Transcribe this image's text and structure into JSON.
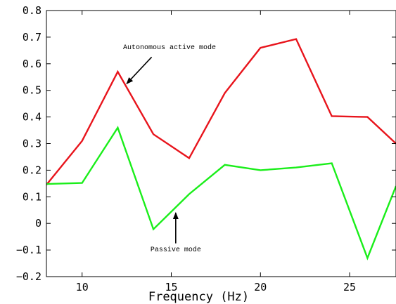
{
  "chart_data": {
    "type": "line",
    "title": "",
    "xlabel": "Frequency (Hz)",
    "ylabel": "",
    "xlim": [
      8,
      27.6
    ],
    "ylim": [
      -0.2,
      0.8
    ],
    "xticks": [
      10,
      15,
      20,
      25
    ],
    "xtick_labels": [
      "10",
      "15",
      "20",
      "25"
    ],
    "yticks": [
      -0.2,
      -0.1,
      0,
      0.1,
      0.2,
      0.3,
      0.4,
      0.5,
      0.6,
      0.7,
      0.8
    ],
    "ytick_labels": [
      "−0.2",
      "−0.1",
      "0",
      "0.1",
      "0.2",
      "0.3",
      "0.4",
      "0.5",
      "0.6",
      "0.7",
      "0.8"
    ],
    "grid": false,
    "series": [
      {
        "color": "#e8141c",
        "x": [
          8,
          10,
          12,
          14,
          16,
          18,
          20,
          22,
          24,
          26,
          27.6
        ],
        "y": [
          0.145,
          0.31,
          0.57,
          0.335,
          0.245,
          0.49,
          0.66,
          0.693,
          0.403,
          0.4,
          0.3
        ]
      },
      {
        "color": "#1aee1a",
        "x": [
          8,
          10,
          12,
          14,
          16,
          18,
          20,
          22,
          24,
          26,
          27.6
        ],
        "y": [
          0.148,
          0.152,
          0.36,
          -0.022,
          0.11,
          0.22,
          0.2,
          0.21,
          0.226,
          -0.13,
          0.14
        ]
      }
    ],
    "annotations": [
      {
        "text": "Autonomous active mode",
        "x": 14.9,
        "y": 0.655,
        "arrow_from": [
          13.9,
          0.625
        ],
        "arrow_to": [
          12.5,
          0.525
        ]
      },
      {
        "text": "Passive mode",
        "x": 15.25,
        "y": -0.105,
        "arrow_from": [
          15.25,
          -0.075
        ],
        "arrow_to": [
          15.25,
          0.04
        ]
      }
    ]
  }
}
